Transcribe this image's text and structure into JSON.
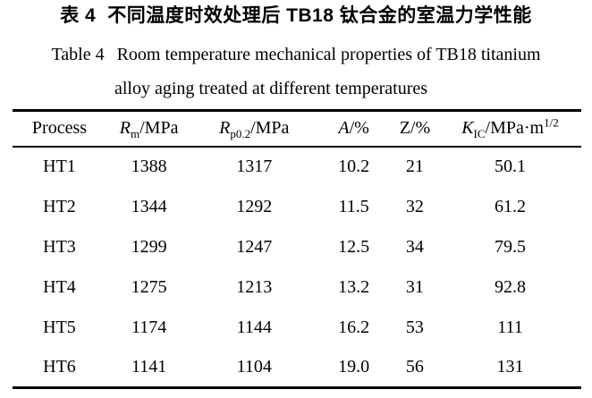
{
  "colors": {
    "text": "#000000",
    "background": "#ffffff",
    "rule": "#000000"
  },
  "caption": {
    "zh_label": "表 4",
    "zh_title": "不同温度时效处理后 TB18 钛合金的室温力学性能",
    "en_label": "Table 4",
    "en_title_line1": "Room temperature mechanical properties of TB18 titanium",
    "en_title_line2": "alloy aging treated at different temperatures"
  },
  "table": {
    "columns": [
      {
        "label": "Process"
      },
      {
        "sym": "R",
        "sub": "m",
        "unit": "/MPa"
      },
      {
        "sym": "R",
        "sub": "p0.2",
        "unit": "/MPa"
      },
      {
        "sym": "A",
        "unit": "/%"
      },
      {
        "sym": "Z",
        "unit": "/%"
      },
      {
        "sym": "K",
        "sub": "IC",
        "unit": "/MPa·m",
        "sup": "1/2"
      }
    ],
    "rows": [
      [
        "HT1",
        "1388",
        "1317",
        "10.2",
        "21",
        "50.1"
      ],
      [
        "HT2",
        "1344",
        "1292",
        "11.5",
        "32",
        "61.2"
      ],
      [
        "HT3",
        "1299",
        "1247",
        "12.5",
        "34",
        "79.5"
      ],
      [
        "HT4",
        "1275",
        "1213",
        "13.2",
        "31",
        "92.8"
      ],
      [
        "HT5",
        "1174",
        "1144",
        "16.2",
        "53",
        "111"
      ],
      [
        "HT6",
        "1141",
        "1104",
        "19.0",
        "56",
        "131"
      ]
    ]
  }
}
